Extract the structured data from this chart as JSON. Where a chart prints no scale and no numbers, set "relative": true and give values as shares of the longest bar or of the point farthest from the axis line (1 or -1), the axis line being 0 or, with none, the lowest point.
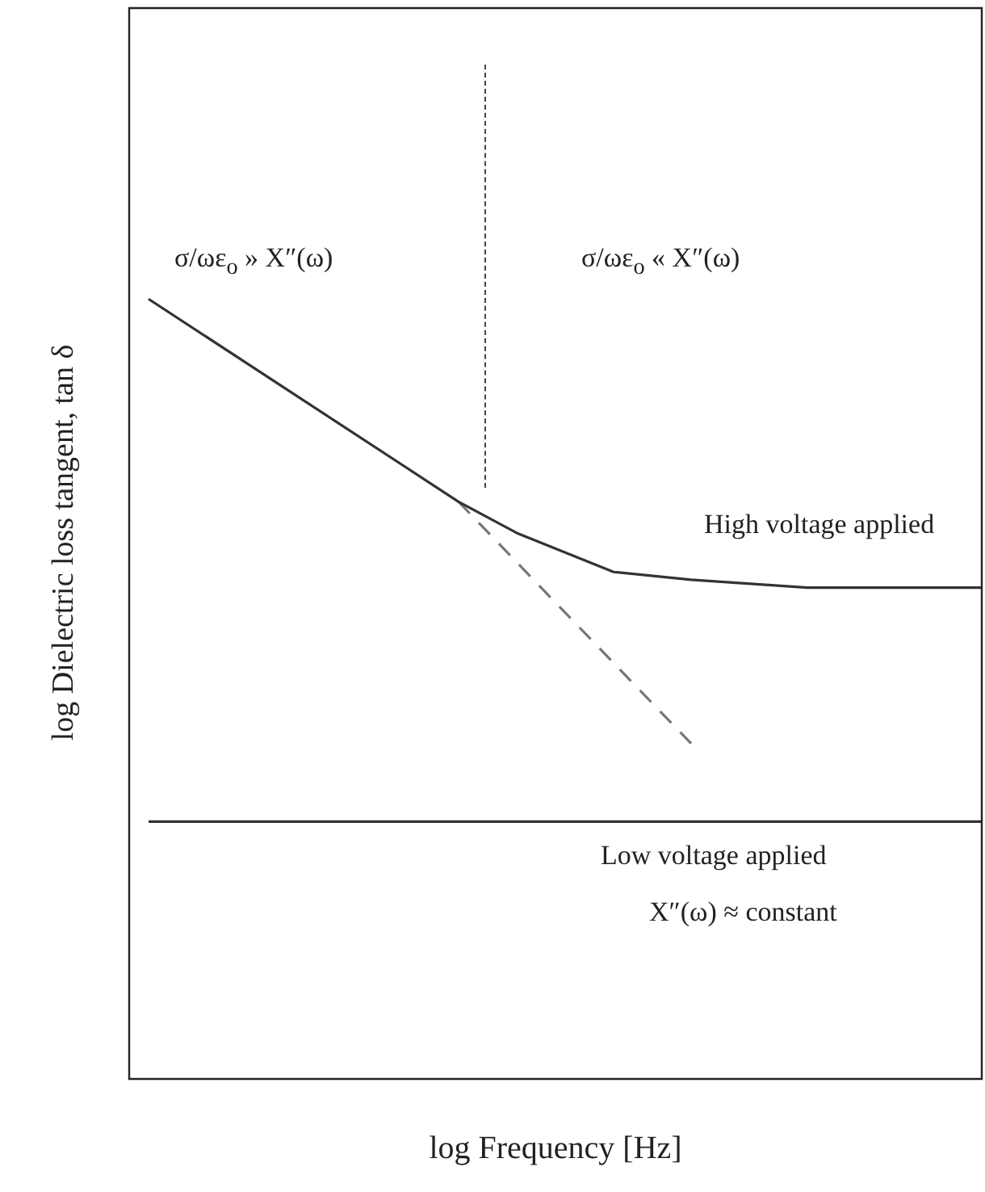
{
  "chart_data": {
    "type": "line",
    "relative": true,
    "xlabel": "log Frequency [Hz]",
    "ylabel": "log  Dielectric loss tangent, tan δ",
    "annotations": [
      "σ/ωε$_{o}$ » X″(ω)",
      "σ/ωε$_{o}$ « X″(ω)",
      "X″(ω) ≈ constant"
    ],
    "categories": [
      null,
      null,
      null,
      null,
      null,
      null,
      null,
      null,
      null,
      null,
      null,
      null,
      null,
      null,
      null,
      null,
      null,
      null,
      null,
      null,
      null,
      null,
      null,
      null,
      null,
      null,
      null,
      null,
      null,
      null,
      null,
      null,
      null,
      null,
      null,
      null,
      null,
      null,
      null,
      null,
      null,
      null,
      null,
      null,
      null
    ],
    "series": [
      {
        "name": "High voltage applied",
        "color": "#333333",
        "values": [
          null,
          1,
          null,
          null,
          null,
          null,
          null,
          null,
          null,
          null,
          null,
          null,
          null,
          null,
          null,
          null,
          null,
          0.74,
          null,
          null,
          0.7,
          null,
          null,
          null,
          null,
          0.65,
          null,
          null,
          null,
          0.64,
          null,
          null,
          null,
          null,
          null,
          0.63,
          null,
          null,
          null,
          null,
          null,
          null,
          null,
          null,
          0.63
        ]
      },
      {
        "color": "#777777",
        "line_style": "dashed",
        "values": [
          null,
          null,
          null,
          null,
          null,
          null,
          null,
          null,
          null,
          null,
          null,
          null,
          null,
          null,
          null,
          null,
          null,
          0.74,
          null,
          null,
          null,
          null,
          null,
          null,
          null,
          null,
          null,
          null,
          null,
          0.43,
          null,
          null,
          null,
          null,
          null,
          null,
          null,
          null,
          null,
          null,
          null,
          null,
          null,
          null,
          null
        ]
      },
      {
        "name": "Low voltage applied",
        "color": "#333333",
        "values": [
          null,
          0.33,
          null,
          null,
          null,
          null,
          null,
          null,
          null,
          null,
          null,
          null,
          null,
          null,
          null,
          null,
          null,
          null,
          null,
          null,
          null,
          null,
          null,
          null,
          null,
          null,
          null,
          null,
          null,
          null,
          null,
          null,
          null,
          null,
          null,
          null,
          null,
          null,
          null,
          null,
          null,
          null,
          null,
          null,
          0.33
        ]
      }
    ]
  }
}
